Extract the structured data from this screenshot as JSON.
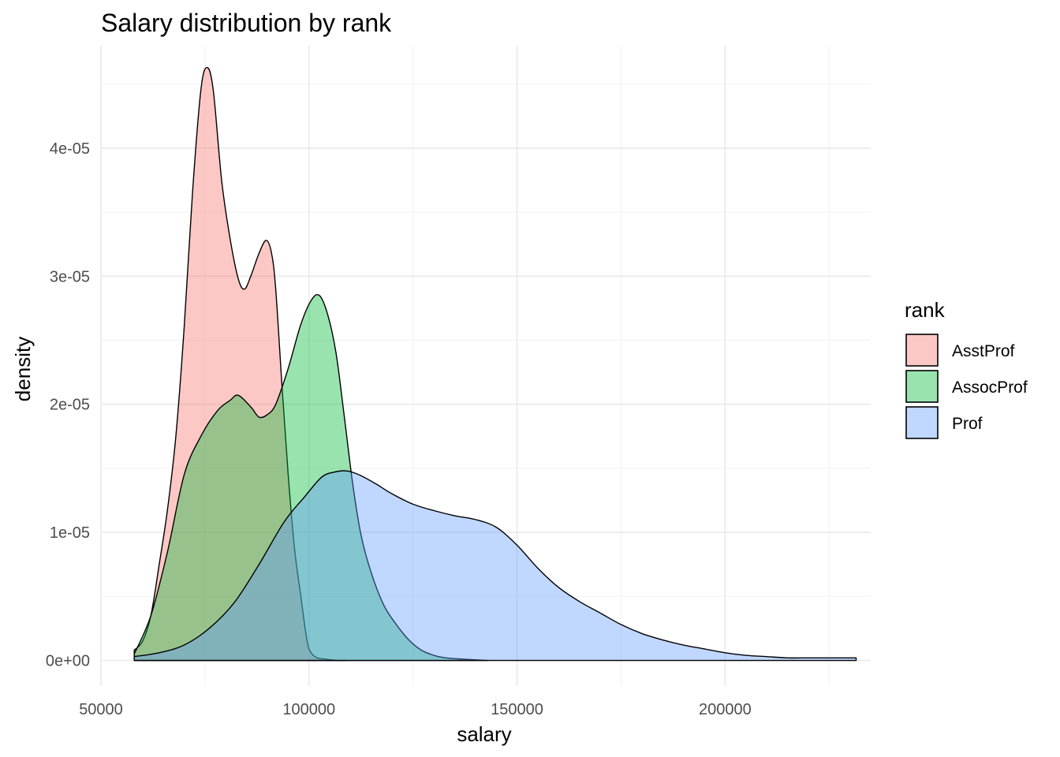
{
  "chart_data": {
    "type": "area",
    "title": "Salary distribution by rank",
    "xlabel": "salary",
    "ylabel": "density",
    "xlim": [
      50000,
      235000
    ],
    "ylim": [
      -2e-06,
      4.8e-05
    ],
    "x_ticks": [
      50000,
      100000,
      150000,
      200000
    ],
    "x_tick_labels": [
      "50000",
      "100000",
      "150000",
      "200000"
    ],
    "y_ticks": [
      0,
      1e-05,
      2e-05,
      3e-05,
      4e-05
    ],
    "y_tick_labels": [
      "0e+00",
      "1e-05",
      "2e-05",
      "3e-05",
      "4e-05"
    ],
    "grid": true,
    "legend": {
      "title": "rank",
      "position": "right"
    },
    "series": [
      {
        "name": "AsstProf",
        "color": "#F8766D",
        "points": [
          [
            58000,
            8e-07
          ],
          [
            60000,
            1.5e-06
          ],
          [
            62000,
            3.5e-06
          ],
          [
            64000,
            7.5e-06
          ],
          [
            66000,
            1.18e-05
          ],
          [
            68000,
            1.75e-05
          ],
          [
            70000,
            2.6e-05
          ],
          [
            72000,
            3.65e-05
          ],
          [
            74000,
            4.45e-05
          ],
          [
            75500,
            4.63e-05
          ],
          [
            77000,
            4.45e-05
          ],
          [
            79000,
            3.75e-05
          ],
          [
            81000,
            3.3e-05
          ],
          [
            83000,
            2.98e-05
          ],
          [
            84500,
            2.9e-05
          ],
          [
            86000,
            3e-05
          ],
          [
            88000,
            3.18e-05
          ],
          [
            89700,
            3.28e-05
          ],
          [
            91000,
            3.18e-05
          ],
          [
            92000,
            2.9e-05
          ],
          [
            93500,
            2.15e-05
          ],
          [
            95000,
            1.45e-05
          ],
          [
            96500,
            8.8e-06
          ],
          [
            98000,
            5.1e-06
          ],
          [
            99500,
            1.6e-06
          ],
          [
            100500,
            6e-07
          ],
          [
            102000,
            2e-07
          ],
          [
            104000,
            1e-07
          ],
          [
            107000,
            0.0
          ],
          [
            109000,
            0.0
          ]
        ]
      },
      {
        "name": "AssocProf",
        "color": "#00BA38",
        "points": [
          [
            58000,
            5e-07
          ],
          [
            62000,
            3.5e-06
          ],
          [
            66000,
            8.5e-06
          ],
          [
            70000,
            1.45e-05
          ],
          [
            74000,
            1.75e-05
          ],
          [
            78000,
            1.95e-05
          ],
          [
            81000,
            2.03e-05
          ],
          [
            83000,
            2.07e-05
          ],
          [
            86000,
            1.98e-05
          ],
          [
            88000,
            1.9e-05
          ],
          [
            90000,
            1.92e-05
          ],
          [
            92000,
            2e-05
          ],
          [
            95000,
            2.28e-05
          ],
          [
            98000,
            2.62e-05
          ],
          [
            100500,
            2.81e-05
          ],
          [
            102500,
            2.85e-05
          ],
          [
            104500,
            2.7e-05
          ],
          [
            106500,
            2.4e-05
          ],
          [
            108500,
            1.9e-05
          ],
          [
            110500,
            1.38e-05
          ],
          [
            112500,
            9.8e-06
          ],
          [
            115000,
            6.8e-06
          ],
          [
            118000,
            4.3e-06
          ],
          [
            121000,
            2.8e-06
          ],
          [
            124000,
            1.6e-06
          ],
          [
            127000,
            8e-07
          ],
          [
            130000,
            4e-07
          ],
          [
            133000,
            2e-07
          ],
          [
            137000,
            1e-07
          ],
          [
            143000,
            0.0
          ]
        ]
      },
      {
        "name": "Prof",
        "color": "#619CFF",
        "points": [
          [
            58000,
            3e-07
          ],
          [
            64000,
            6e-07
          ],
          [
            70000,
            1.2e-06
          ],
          [
            76000,
            2.5e-06
          ],
          [
            82000,
            4.5e-06
          ],
          [
            88000,
            7.5e-06
          ],
          [
            94000,
            1.08e-05
          ],
          [
            99000,
            1.28e-05
          ],
          [
            103000,
            1.43e-05
          ],
          [
            106000,
            1.47e-05
          ],
          [
            109000,
            1.48e-05
          ],
          [
            112000,
            1.45e-05
          ],
          [
            116000,
            1.38e-05
          ],
          [
            120000,
            1.3e-05
          ],
          [
            125000,
            1.22e-05
          ],
          [
            130000,
            1.17e-05
          ],
          [
            135000,
            1.13e-05
          ],
          [
            140000,
            1.1e-05
          ],
          [
            145000,
            1.04e-05
          ],
          [
            150000,
            9e-06
          ],
          [
            155000,
            7.2e-06
          ],
          [
            160000,
            5.7e-06
          ],
          [
            165000,
            4.6e-06
          ],
          [
            170000,
            3.7e-06
          ],
          [
            175000,
            2.8e-06
          ],
          [
            180000,
            2.1e-06
          ],
          [
            185000,
            1.6e-06
          ],
          [
            190000,
            1.2e-06
          ],
          [
            195000,
            9e-07
          ],
          [
            200000,
            6e-07
          ],
          [
            205000,
            4e-07
          ],
          [
            210000,
            3e-07
          ],
          [
            215000,
            2e-07
          ],
          [
            220000,
            2e-07
          ],
          [
            225000,
            2e-07
          ],
          [
            231500,
            2e-07
          ]
        ]
      }
    ]
  }
}
